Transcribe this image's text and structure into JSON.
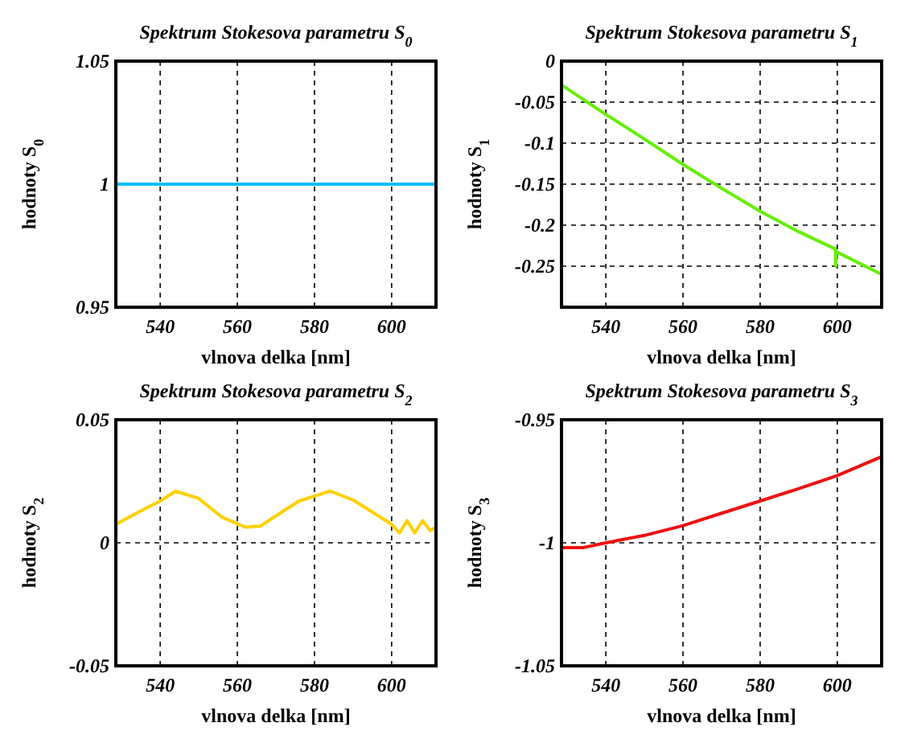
{
  "chart_data": [
    {
      "type": "line",
      "title": "Spektrum Stokesova parametru S$_{0}$",
      "xlabel": "vlnova delka [nm]",
      "ylabel": "hodnoty S$_{0}$",
      "xlim": [
        528.5,
        611.5
      ],
      "xticks": [
        540,
        560,
        580,
        600
      ],
      "ylim": [
        0.95,
        1.05
      ],
      "yticks": [
        0.95,
        1,
        1.05
      ],
      "grid": true,
      "series": [
        {
          "color": "#00bfff",
          "x": [
            528.5,
            611.5
          ],
          "values": [
            1,
            1
          ]
        }
      ]
    },
    {
      "type": "line",
      "title": "Spektrum Stokesova parametru S$_{1}$",
      "xlabel": "vlnova delka [nm]",
      "ylabel": "hodnoty S$_{1}$",
      "xlim": [
        528.5,
        611.5
      ],
      "xticks": [
        540,
        560,
        580,
        600
      ],
      "ylim": [
        -0.3,
        0
      ],
      "yticks": [
        -0.25,
        -0.2,
        -0.15,
        -0.1,
        -0.05,
        0
      ],
      "grid": true,
      "series": [
        {
          "color": "#66ee00",
          "x": [
            528.5,
            540,
            550,
            560,
            570,
            580,
            590,
            599.5,
            599.6,
            599.7,
            600,
            611.5
          ],
          "values": [
            -0.029,
            -0.065,
            -0.095,
            -0.126,
            -0.155,
            -0.183,
            -0.208,
            -0.229,
            -0.25,
            -0.232,
            -0.233,
            -0.26
          ]
        }
      ]
    },
    {
      "type": "line",
      "title": "Spektrum Stokesova parametru S$_{2}$",
      "xlabel": "vlnova delka [nm]",
      "ylabel": "hodnoty S$_{2}$",
      "xlim": [
        528.5,
        611.5
      ],
      "xticks": [
        540,
        560,
        580,
        600
      ],
      "ylim": [
        -0.05,
        0.05
      ],
      "yticks": [
        -0.05,
        0,
        0.05
      ],
      "grid": true,
      "series": [
        {
          "color": "#ffd000",
          "x": [
            528.5,
            535,
            540,
            544,
            550,
            556,
            562,
            566,
            572,
            576,
            580,
            584,
            590,
            596,
            600,
            602,
            604,
            606,
            608,
            610,
            611.5
          ],
          "values": [
            0.0075,
            0.013,
            0.017,
            0.021,
            0.018,
            0.0104,
            0.0064,
            0.0068,
            0.013,
            0.017,
            0.019,
            0.021,
            0.0174,
            0.0115,
            0.0075,
            0.004,
            0.009,
            0.004,
            0.009,
            0.005,
            0.0064
          ]
        }
      ]
    },
    {
      "type": "line",
      "title": "Spektrum Stokesova parametru S$_{3}$",
      "xlabel": "vlnova delka [nm]",
      "ylabel": "hodnoty S$_{3}$",
      "xlim": [
        528.5,
        611.5
      ],
      "xticks": [
        540,
        560,
        580,
        600
      ],
      "ylim": [
        -1.05,
        -0.95
      ],
      "yticks": [
        -1.05,
        -1,
        -0.95
      ],
      "grid": true,
      "series": [
        {
          "color": "#ee1111",
          "x": [
            528.5,
            534,
            540,
            550,
            560,
            570,
            580,
            590,
            600,
            611.5
          ],
          "values": [
            -1.002,
            -1.002,
            -1.0,
            -0.997,
            -0.993,
            -0.988,
            -0.983,
            -0.978,
            -0.9727,
            -0.965
          ]
        }
      ]
    }
  ]
}
